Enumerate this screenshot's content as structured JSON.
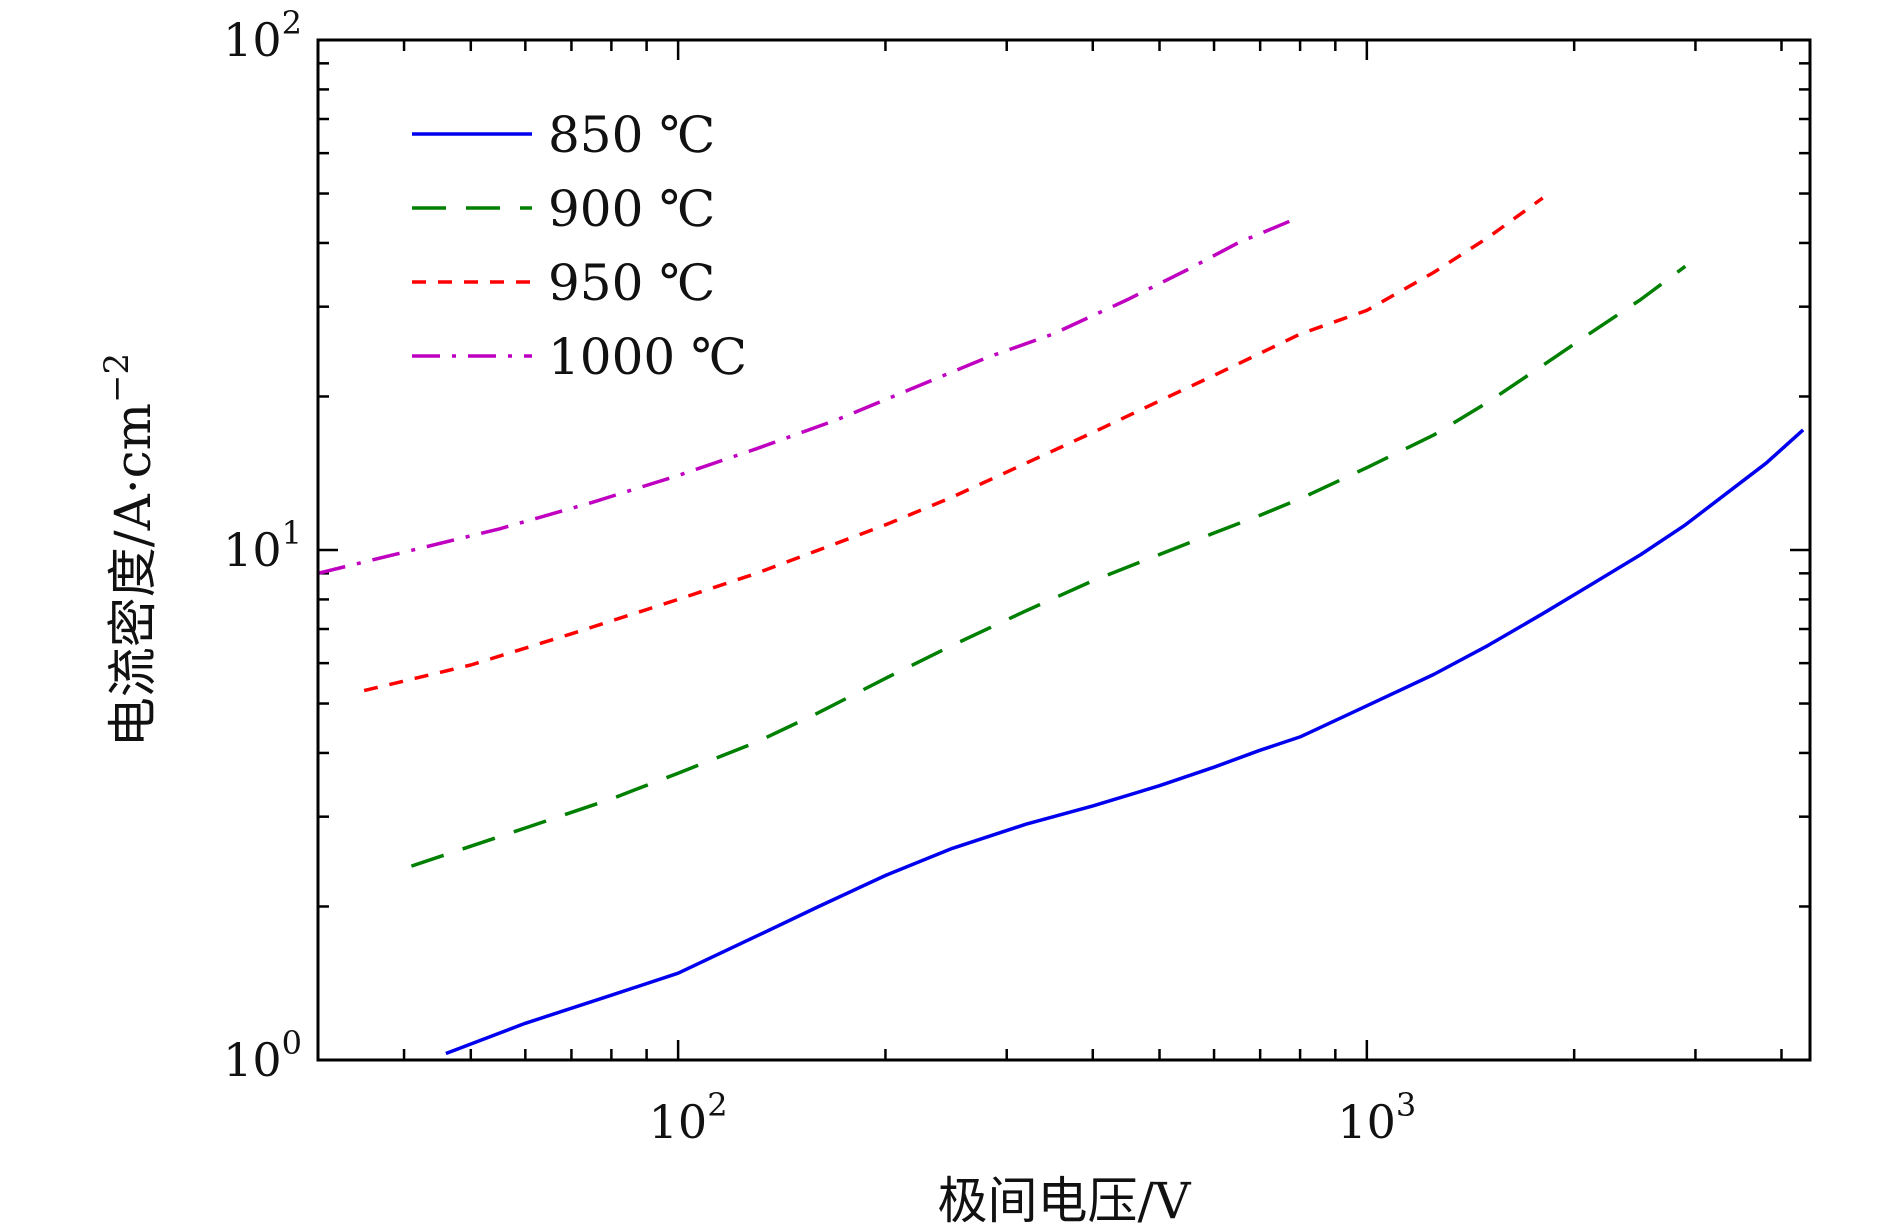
{
  "chart_data": {
    "type": "line",
    "title": "",
    "xlabel": "极间电压/V",
    "ylabel": "电流密度/A·cm",
    "ylabel_exponent": "−2",
    "xscale": "log",
    "yscale": "log",
    "xlim": [
      30,
      4400
    ],
    "ylim": [
      1,
      100
    ],
    "legend_position": "top-left",
    "x_ticks": [
      {
        "value": 100,
        "base": "10",
        "exp": "2"
      },
      {
        "value": 1000,
        "base": "10",
        "exp": "3"
      }
    ],
    "y_ticks": [
      {
        "value": 1,
        "base": "10",
        "exp": "0"
      },
      {
        "value": 10,
        "base": "10",
        "exp": "1"
      },
      {
        "value": 100,
        "base": "10",
        "exp": "2"
      }
    ],
    "series": [
      {
        "name": "850 ℃",
        "color": "#0000ee",
        "dash": "solid",
        "x": [
          46,
          60,
          80,
          100,
          130,
          160,
          200,
          250,
          320,
          400,
          500,
          600,
          700,
          800,
          1000,
          1250,
          1500,
          1800,
          2100,
          2500,
          2900,
          3300,
          3800,
          4300
        ],
        "y": [
          1.03,
          1.18,
          1.34,
          1.48,
          1.75,
          2.0,
          2.3,
          2.6,
          2.9,
          3.15,
          3.45,
          3.75,
          4.05,
          4.3,
          4.95,
          5.7,
          6.5,
          7.5,
          8.5,
          9.8,
          11.2,
          12.8,
          14.8,
          17.2
        ]
      },
      {
        "name": "900 ℃",
        "color": "#008000",
        "dash": "longdash",
        "x": [
          41,
          60,
          80,
          100,
          130,
          160,
          200,
          250,
          320,
          400,
          500,
          600,
          700,
          800,
          1000,
          1250,
          1500,
          1800,
          2100,
          2500,
          2900
        ],
        "y": [
          2.4,
          2.85,
          3.25,
          3.65,
          4.2,
          4.8,
          5.6,
          6.5,
          7.6,
          8.7,
          9.8,
          10.8,
          11.7,
          12.6,
          14.5,
          16.8,
          19.5,
          23,
          26.5,
          31,
          36
        ]
      },
      {
        "name": "950 ℃",
        "color": "#ff0000",
        "dash": "shortdash",
        "x": [
          35,
          50,
          70,
          100,
          130,
          160,
          200,
          250,
          320,
          400,
          500,
          600,
          700,
          800,
          1000,
          1250,
          1500,
          1800
        ],
        "y": [
          5.3,
          5.95,
          6.85,
          8.0,
          9.0,
          10.0,
          11.2,
          12.7,
          14.8,
          17.0,
          19.6,
          22.0,
          24.3,
          26.5,
          29.5,
          35.0,
          41.0,
          49.0
        ]
      },
      {
        "name": "1000 ℃",
        "color": "#c000c0",
        "dash": "dashdot",
        "x": [
          30,
          40,
          55,
          75,
          100,
          130,
          170,
          220,
          280,
          350,
          450,
          550,
          650,
          800
        ],
        "y": [
          9.0,
          9.9,
          11.0,
          12.4,
          14.0,
          15.8,
          18.0,
          20.8,
          23.8,
          26.5,
          31.0,
          35.5,
          40.0,
          45.0
        ]
      }
    ]
  }
}
